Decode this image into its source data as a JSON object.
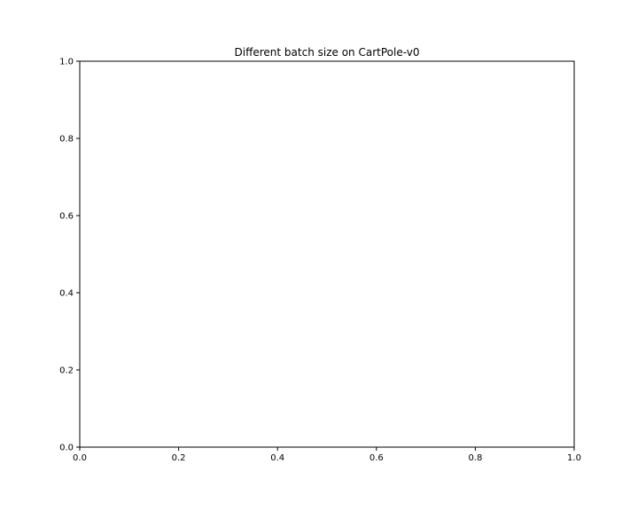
{
  "chart_data": {
    "type": "line",
    "title": "Different batch size on CartPole-v0",
    "xlabel": "",
    "ylabel": "",
    "xlim": [
      0.0,
      1.0
    ],
    "ylim": [
      0.0,
      1.0
    ],
    "xticks": [
      0.0,
      0.2,
      0.4,
      0.6,
      0.8,
      1.0
    ],
    "yticks": [
      0.0,
      0.2,
      0.4,
      0.6,
      0.8,
      1.0
    ],
    "xtick_labels": [
      "0.0",
      "0.2",
      "0.4",
      "0.6",
      "0.8",
      "1.0"
    ],
    "ytick_labels": [
      "0.0",
      "0.2",
      "0.4",
      "0.6",
      "0.8",
      "1.0"
    ],
    "series": [],
    "grid": false,
    "legend": "none"
  }
}
